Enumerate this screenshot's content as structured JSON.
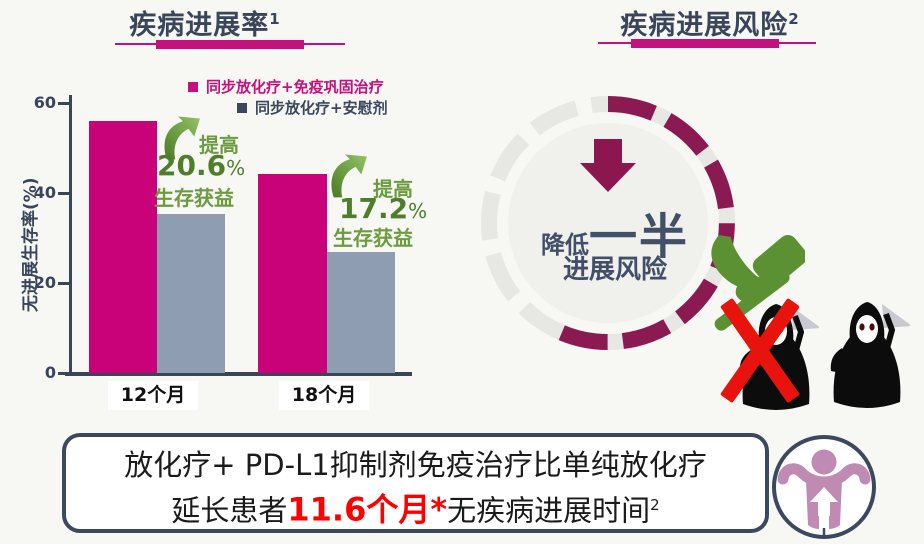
{
  "page": {
    "background": "#F7F7F3"
  },
  "left_panel": {
    "title": "疾病进展率",
    "title_sup": "1"
  },
  "right_panel": {
    "title": "疾病进展风险",
    "title_sup": "2",
    "circle": {
      "reduce_label": "降低",
      "half_label": "一半",
      "risk_label": "进展风险"
    }
  },
  "legend": [
    {
      "label": "同步放化疗+免疫巩固治疗",
      "color": "#C3117D"
    },
    {
      "label": "同步放化疗+安慰剂",
      "color": "#3A475C"
    }
  ],
  "chart_data": {
    "type": "bar",
    "categories": [
      "12个月",
      "18个月"
    ],
    "series": [
      {
        "name": "同步放化疗+免疫巩固治疗",
        "color": "#C9027A",
        "values": [
          55.9,
          44.2
        ]
      },
      {
        "name": "同步放化疗+安慰剂",
        "color": "#8E9DB2",
        "values": [
          35.3,
          27.0
        ]
      }
    ],
    "title": "疾病进展率",
    "xlabel": "",
    "ylabel": "无进展生存率(%)",
    "ylim": [
      0,
      60
    ],
    "yticks": [
      0,
      20,
      40,
      60
    ],
    "grid": false,
    "legend_position": "top-right",
    "annotations": [
      {
        "prefix": "提高",
        "value": "20.6",
        "unit": "%",
        "suffix": "生存获益"
      },
      {
        "prefix": "提高",
        "value": "17.2",
        "unit": "%",
        "suffix": "生存获益"
      }
    ]
  },
  "bottom_banner": {
    "line1": "放化疗+ PD-L1抑制剂免疫治疗比单纯放化疗",
    "line2_prefix": "延长患者",
    "line2_highlight": "11.6个月*",
    "line2_suffix": "无疾病进展时间",
    "line2_sup": "2"
  },
  "colors": {
    "accent_magenta": "#C3117D",
    "bar_pink": "#C9027A",
    "bar_gray": "#8E9DB2",
    "title_navy": "#38455A",
    "ring_maroon": "#8C1A52",
    "inner_circle_gray": "#F0F0EC",
    "annotation_green": "#6C9C40",
    "annotation_green_dark": "#4E7E2B",
    "highlight_red": "#FE0000",
    "x_red": "#E9130E",
    "person_mauve": "#C08BB3"
  }
}
